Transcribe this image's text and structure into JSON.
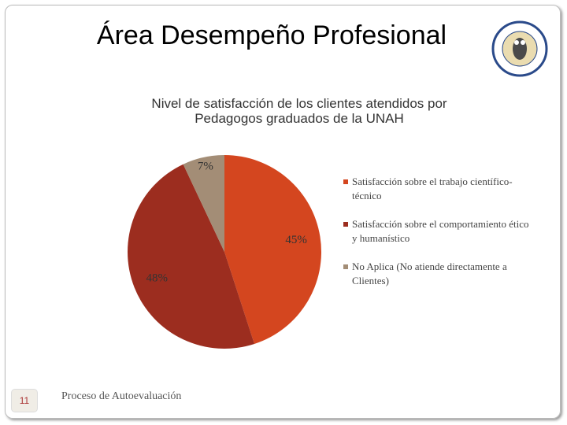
{
  "header": {
    "title": "Área Desempeño Profesional"
  },
  "chart_data": {
    "type": "pie",
    "title": "Nivel de satisfacción de los clientes atendidos por Pedagogos graduados de la UNAH",
    "categories": [
      "Satisfacción sobre el trabajo científico-técnico",
      "Satisfacción sobre el comportamiento ético y humanístico",
      "No Aplica (No atiende directamente a Clientes)"
    ],
    "values": [
      45,
      48,
      7
    ],
    "value_labels": [
      "45%",
      "48%",
      "7%"
    ],
    "colors": [
      "#d4461f",
      "#9c2d1f",
      "#a38d76"
    ],
    "legend": "right"
  },
  "footer": {
    "page_number": "11",
    "text": "Proceso de Autoevaluación"
  }
}
